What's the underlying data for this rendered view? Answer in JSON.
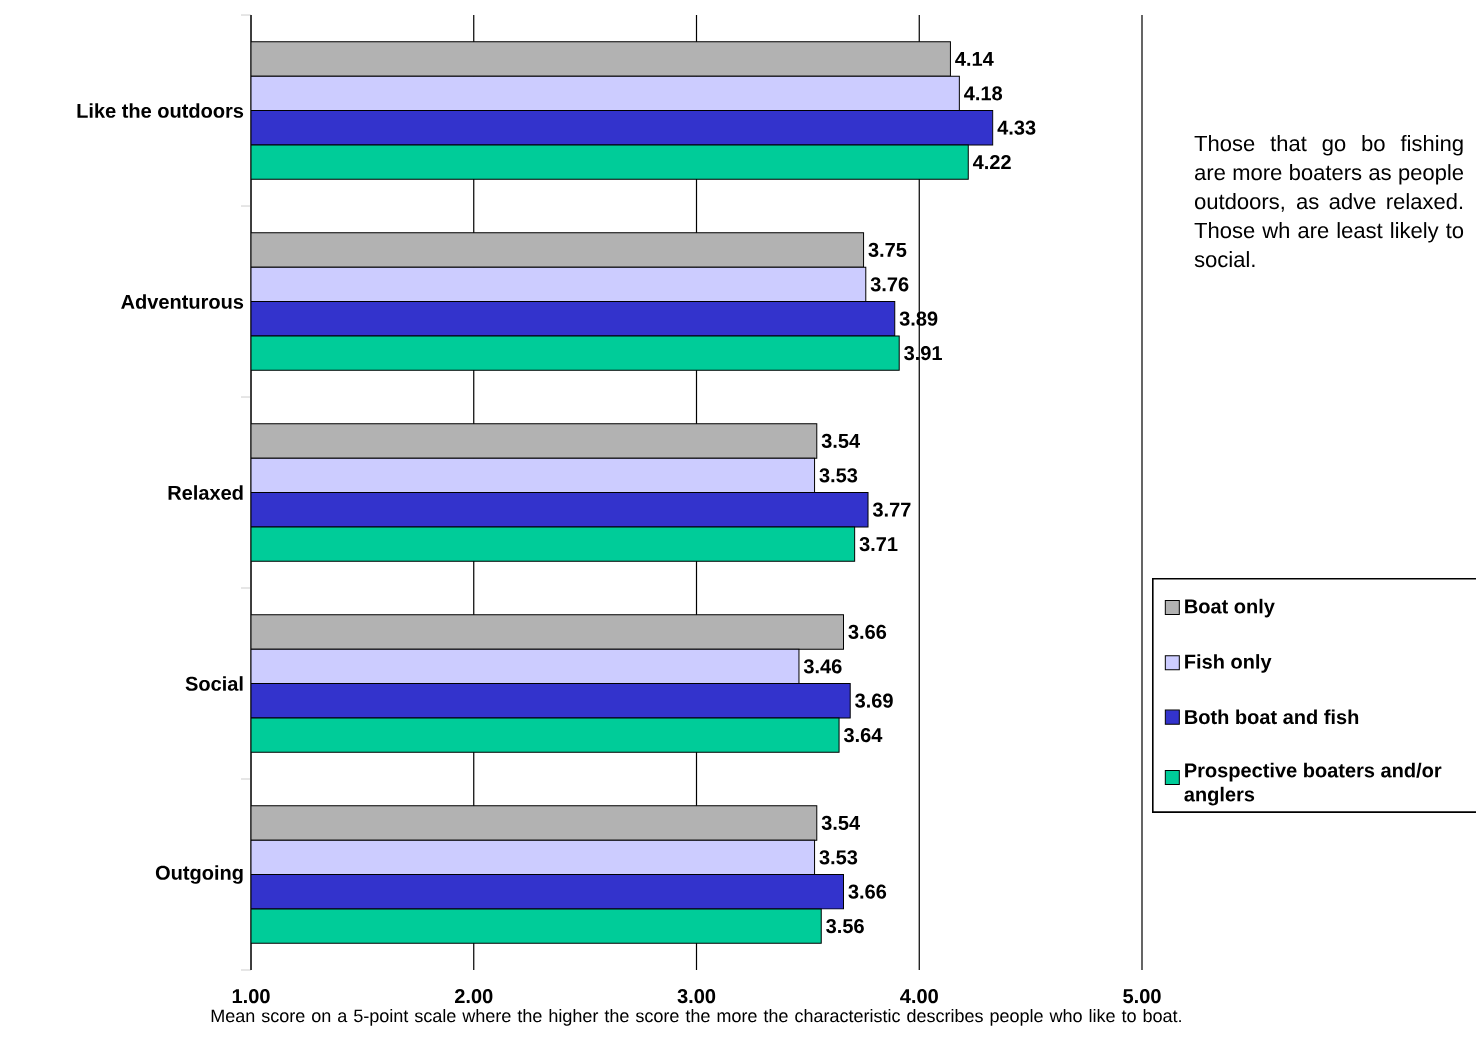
{
  "chart_data": {
    "type": "bar",
    "orientation": "horizontal",
    "xlabel": "Mean score on a 5-point scale where the higher the score the more the characteristic describes people who like to boat.",
    "categories": [
      "Like the outdoors",
      "Adventurous",
      "Relaxed",
      "Social",
      "Outgoing"
    ],
    "series": [
      {
        "name": "Boat only",
        "color": "#b2b2b2",
        "values": [
          4.14,
          3.75,
          3.54,
          3.66,
          3.54
        ]
      },
      {
        "name": "Fish only",
        "color": "#ccccff",
        "values": [
          4.18,
          3.76,
          3.53,
          3.46,
          3.53
        ]
      },
      {
        "name": "Both boat and fish",
        "color": "#3333cc",
        "values": [
          4.33,
          3.89,
          3.77,
          3.69,
          3.66
        ]
      },
      {
        "name": "Prospective boaters and/or anglers",
        "color": "#00cc99",
        "values": [
          4.22,
          3.91,
          3.71,
          3.64,
          3.56
        ]
      }
    ],
    "xlim": [
      1,
      5
    ],
    "xticks": [
      {
        "value": 1,
        "label": "1.00"
      },
      {
        "value": 2,
        "label": "2.00"
      },
      {
        "value": 3,
        "label": "3.00"
      },
      {
        "value": 4,
        "label": "4.00"
      },
      {
        "value": 5,
        "label": "5.00"
      }
    ],
    "grid": "x",
    "legend": "right",
    "data_labels": true,
    "annotations": [
      "Those that go bo fishing are more boaters as people outdoors, as adve relaxed. Those wh are least likely to social."
    ]
  }
}
